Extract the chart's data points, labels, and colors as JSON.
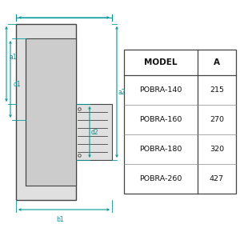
{
  "background_color": "#ffffff",
  "teal": "#009999",
  "dark_gray": "#444444",
  "mid_gray": "#888888",
  "light_gray": "#cccccc",
  "fill_light": "#e0e0e0",
  "fill_mid": "#cccccc",
  "fill_dark": "#bbbbbb",
  "table_models": [
    "POBRA-140",
    "POBRA-160",
    "POBRA-180",
    "POBRA-260"
  ],
  "table_a_values": [
    "215",
    "270",
    "320",
    "427"
  ],
  "header_model": "MODEL",
  "header_a": "A",
  "dim_labels": [
    "a1",
    "d1",
    "d2",
    "a2",
    "b1"
  ],
  "figsize": [
    3.0,
    3.0
  ],
  "dpi": 100
}
